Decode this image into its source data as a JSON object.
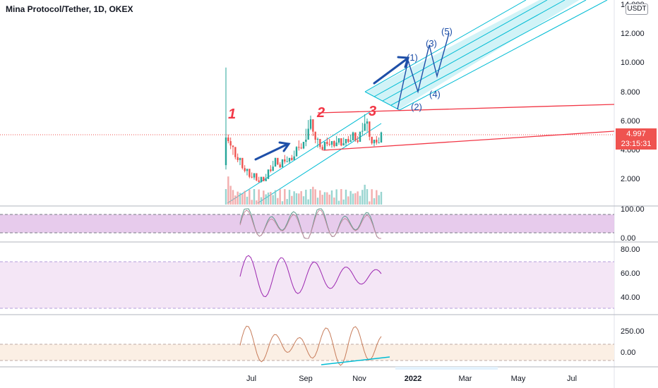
{
  "header": {
    "symbol_title": "Mina Protocol/Tether, 1D, OKEX",
    "currency": "USDT"
  },
  "price_tag": {
    "price": "4.997",
    "countdown": "23:15:31"
  },
  "colors": {
    "bull": "#26a69a",
    "bear": "#ef5350",
    "channel": "#00bcd4",
    "channel_fill": "#b2ebf2",
    "drawing_blue": "#1e4fa8",
    "trendline_red": "#f23645",
    "stoch_line": "#5b9c8c",
    "stoch_fill": "#e1bee7",
    "rsi_line": "#9c27b0",
    "rsi_fill": "#f3e5f5",
    "cci_line": "#c77c5a",
    "cci_fill": "#fbefe4",
    "volume_up": "#80cbc4",
    "volume_down": "#ef9a9a"
  },
  "chart_data": [
    {
      "type": "candlestick",
      "pane": "price",
      "y_ticks": [
        "14.000",
        "12.000",
        "10.000",
        "8.000",
        "6.000",
        "4.000",
        "2.000"
      ],
      "ylim": [
        0,
        14
      ],
      "x_ticks": [
        "Jul",
        "Sep",
        "Nov",
        "2022",
        "Mar",
        "May",
        "Jul"
      ],
      "last_price": 4.997,
      "ohlc_path": [
        [
          9.6,
          2.6
        ],
        [
          5.0,
          4.4
        ],
        [
          4.8,
          4.0
        ],
        [
          4.2,
          3.6
        ],
        [
          3.9,
          3.3
        ],
        [
          3.7,
          3.1
        ],
        [
          3.4,
          2.9
        ],
        [
          3.1,
          2.6
        ],
        [
          2.9,
          2.4
        ],
        [
          2.6,
          2.2
        ],
        [
          2.5,
          2.0
        ],
        [
          2.4,
          2.0
        ],
        [
          2.3,
          1.9
        ],
        [
          2.2,
          1.8
        ],
        [
          2.1,
          1.7
        ],
        [
          2.0,
          1.7
        ],
        [
          2.1,
          1.8
        ],
        [
          2.3,
          1.9
        ],
        [
          2.6,
          2.1
        ],
        [
          2.9,
          2.4
        ],
        [
          3.2,
          2.7
        ],
        [
          3.4,
          2.9
        ],
        [
          3.3,
          2.9
        ],
        [
          3.1,
          2.7
        ],
        [
          3.3,
          2.8
        ],
        [
          3.6,
          3.0
        ],
        [
          3.5,
          3.1
        ],
        [
          3.3,
          3.0
        ],
        [
          3.6,
          3.2
        ],
        [
          3.9,
          3.4
        ],
        [
          4.2,
          3.6
        ],
        [
          4.6,
          3.9
        ],
        [
          4.4,
          4.0
        ],
        [
          4.5,
          4.0
        ],
        [
          5.4,
          4.2
        ],
        [
          6.0,
          5.1
        ],
        [
          6.3,
          5.3
        ],
        [
          5.8,
          4.9
        ],
        [
          5.2,
          4.4
        ],
        [
          4.8,
          4.1
        ],
        [
          4.6,
          4.0
        ],
        [
          4.3,
          3.9
        ],
        [
          4.5,
          4.0
        ],
        [
          4.8,
          4.2
        ],
        [
          4.7,
          4.2
        ],
        [
          4.5,
          4.1
        ],
        [
          4.6,
          4.1
        ],
        [
          4.9,
          4.3
        ],
        [
          4.7,
          4.3
        ],
        [
          4.6,
          4.2
        ],
        [
          4.8,
          4.3
        ],
        [
          4.7,
          4.2
        ],
        [
          4.9,
          4.4
        ],
        [
          5.0,
          4.5
        ],
        [
          5.2,
          4.6
        ],
        [
          5.0,
          4.5
        ],
        [
          4.9,
          4.4
        ],
        [
          5.2,
          4.7
        ],
        [
          5.8,
          5.0
        ],
        [
          6.4,
          5.4
        ],
        [
          6.1,
          5.2
        ],
        [
          5.4,
          4.6
        ],
        [
          4.8,
          4.3
        ],
        [
          4.6,
          4.2
        ],
        [
          4.9,
          4.3
        ],
        [
          4.8,
          4.4
        ],
        [
          5.2,
          4.6
        ]
      ],
      "annotations": {
        "wave_numbers": [
          "1",
          "2",
          "3"
        ],
        "elliott_labels": [
          "(1)",
          "(2)",
          "(3)",
          "(4)",
          "(5)"
        ]
      }
    },
    {
      "type": "line",
      "pane": "stochastic",
      "y_ticks": [
        "100.00",
        "0.00"
      ],
      "ylim": [
        0,
        100
      ],
      "band": [
        20,
        80
      ]
    },
    {
      "type": "line",
      "pane": "rsi",
      "y_ticks": [
        "80.00",
        "60.00",
        "40.00"
      ],
      "ylim": [
        25,
        85
      ],
      "band": [
        30,
        70
      ]
    },
    {
      "type": "line",
      "pane": "cci",
      "y_ticks": [
        "250.00",
        "0.00"
      ],
      "ylim": [
        -150,
        350
      ],
      "band": [
        -100,
        100
      ]
    }
  ]
}
